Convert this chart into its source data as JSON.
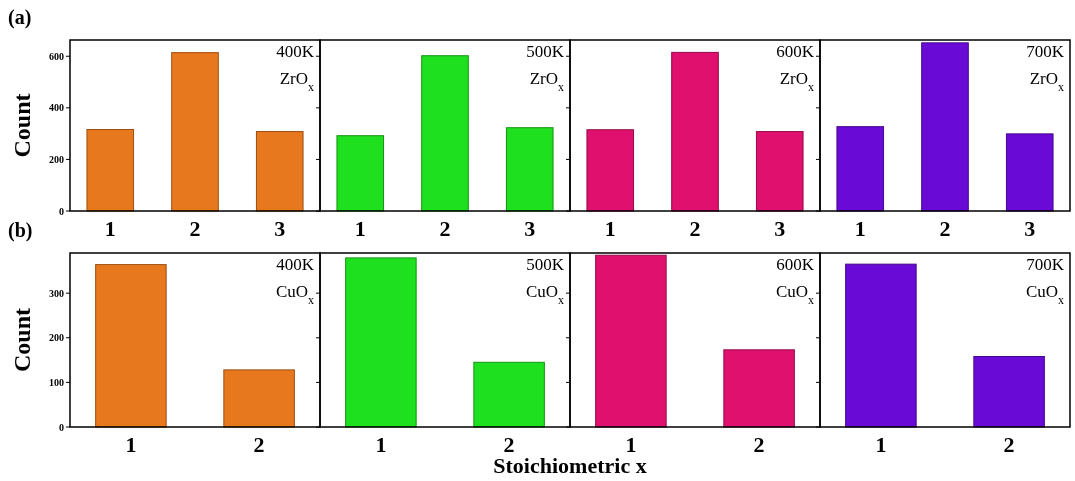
{
  "chart_data": [
    {
      "type": "bar",
      "categories": [
        "1",
        "2",
        "3"
      ],
      "values": [
        316,
        614,
        308
      ],
      "color": "#e8781e",
      "ylim": [
        0,
        663
      ],
      "yticks": [
        0,
        200,
        400,
        600
      ],
      "ylabel": "Count",
      "annotations": [
        "(a)",
        "400K",
        "ZrO$_{x}$"
      ]
    },
    {
      "type": "bar",
      "categories": [
        "1",
        "2",
        "3"
      ],
      "values": [
        292,
        602,
        323
      ],
      "color": "#1ee01e",
      "ylim": [
        0,
        663
      ],
      "yticks": [
        0,
        200,
        400,
        600
      ],
      "tick_labels": "x",
      "annotations": [
        "500K",
        "ZrO$_{x}$"
      ]
    },
    {
      "type": "bar",
      "categories": [
        "1",
        "2",
        "3"
      ],
      "values": [
        315,
        615,
        308
      ],
      "color": "#e0106e",
      "ylim": [
        0,
        663
      ],
      "yticks": [
        0,
        200,
        400,
        600
      ],
      "tick_labels": "x",
      "annotations": [
        "600K",
        "ZrO$_{x}$"
      ]
    },
    {
      "type": "bar",
      "categories": [
        "1",
        "2",
        "3"
      ],
      "values": [
        327,
        652,
        299
      ],
      "color": "#6a0ad6",
      "ylim": [
        0,
        663
      ],
      "yticks": [
        0,
        200,
        400,
        600
      ],
      "tick_labels": "x",
      "annotations": [
        "700K",
        "ZrO$_{x}$"
      ]
    },
    {
      "type": "bar",
      "categories": [
        "1",
        "2"
      ],
      "values": [
        364,
        128
      ],
      "color": "#e8781e",
      "ylim": [
        0,
        390
      ],
      "yticks": [
        0,
        100,
        200,
        300
      ],
      "ylabel": "Count",
      "annotations": [
        "(b)",
        "400K",
        "CuO$_{x}$"
      ]
    },
    {
      "type": "bar",
      "categories": [
        "1",
        "2"
      ],
      "values": [
        379,
        145
      ],
      "color": "#1ee01e",
      "ylim": [
        0,
        390
      ],
      "yticks": [
        0,
        100,
        200,
        300
      ],
      "tick_labels": "x",
      "xlabel": "Stoichiometric x",
      "annotations": [
        "500K",
        "CuO$_{x}$"
      ]
    },
    {
      "type": "bar",
      "categories": [
        "1",
        "2"
      ],
      "values": [
        385,
        173
      ],
      "color": "#e0106e",
      "ylim": [
        0,
        390
      ],
      "yticks": [
        0,
        100,
        200,
        300
      ],
      "tick_labels": "x",
      "annotations": [
        "600K",
        "CuO$_{x}$"
      ]
    },
    {
      "type": "bar",
      "categories": [
        "1",
        "2"
      ],
      "values": [
        365,
        158
      ],
      "color": "#6a0ad6",
      "ylim": [
        0,
        390
      ],
      "yticks": [
        0,
        100,
        200,
        300
      ],
      "tick_labels": "x",
      "annotations": [
        "700K",
        "CuO$_{x}$"
      ]
    }
  ]
}
